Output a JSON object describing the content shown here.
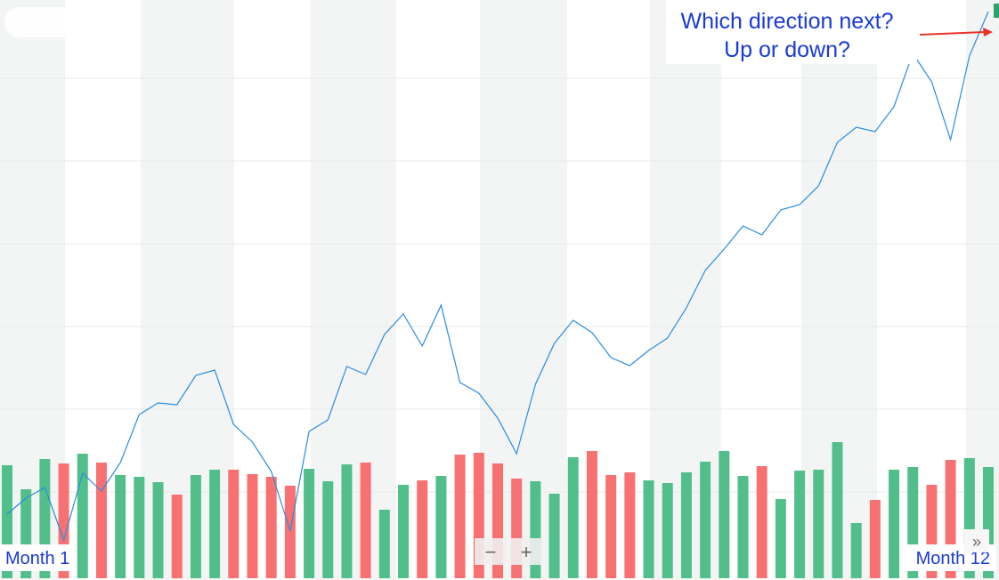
{
  "chart_data": {
    "type": "line",
    "annotation": {
      "lines": [
        "Which direction next?",
        "Up or down?"
      ],
      "arrow_color": "#e8322a",
      "text_color": "#1a3ad8"
    },
    "start_label": "Month 1",
    "end_label": "Month 12",
    "controls": {
      "zoom_out": "−",
      "zoom_in": "+",
      "scroll": "»"
    },
    "color": "#2a8de0",
    "ylim": [
      0,
      650
    ],
    "values": [
      72,
      90,
      102,
      43,
      118,
      98,
      130,
      184,
      197,
      195,
      228,
      234,
      173,
      153,
      120,
      53,
      165,
      178,
      238,
      229,
      274,
      297,
      261,
      307,
      220,
      208,
      180,
      140,
      218,
      264,
      290,
      276,
      248,
      239,
      256,
      270,
      304,
      346,
      370,
      396,
      386,
      414,
      420,
      441,
      490,
      507,
      502,
      530,
      590,
      558,
      493,
      587,
      637
    ],
    "volume": {
      "type": "bar",
      "ylim": [
        0,
        650
      ],
      "values": [
        127,
        100,
        134,
        129,
        140,
        130,
        116,
        114,
        108,
        94,
        116,
        122,
        122,
        117,
        114,
        104,
        123,
        109,
        128,
        130,
        77,
        105,
        110,
        115,
        139,
        141,
        129,
        112,
        109,
        95,
        136,
        143,
        116,
        119,
        110,
        107,
        119,
        131,
        143,
        115,
        126,
        89,
        121,
        122,
        153,
        62,
        88,
        122,
        125,
        105,
        133,
        135,
        125
      ],
      "colors": [
        "#52bf8a",
        "#52bf8a",
        "#52bf8a",
        "#f77173",
        "#52bf8a",
        "#f77173",
        "#52bf8a",
        "#52bf8a",
        "#52bf8a",
        "#f77173",
        "#52bf8a",
        "#52bf8a",
        "#f77173",
        "#f77173",
        "#f77173",
        "#f77173",
        "#52bf8a",
        "#52bf8a",
        "#52bf8a",
        "#f77173",
        "#52bf8a",
        "#52bf8a",
        "#f77173",
        "#52bf8a",
        "#f77173",
        "#f77173",
        "#f77173",
        "#f77173",
        "#52bf8a",
        "#52bf8a",
        "#52bf8a",
        "#f77173",
        "#f77173",
        "#f77173",
        "#52bf8a",
        "#52bf8a",
        "#52bf8a",
        "#52bf8a",
        "#52bf8a",
        "#52bf8a",
        "#f77173",
        "#52bf8a",
        "#52bf8a",
        "#52bf8a",
        "#52bf8a",
        "#52bf8a",
        "#f77173",
        "#52bf8a",
        "#52bf8a",
        "#f77173",
        "#f77173",
        "#52bf8a",
        "#52bf8a"
      ]
    }
  }
}
